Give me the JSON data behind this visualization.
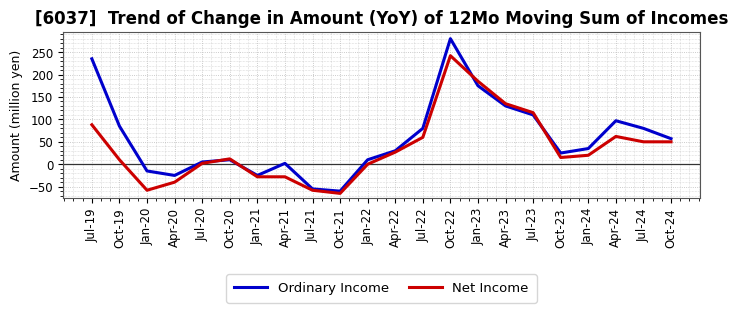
{
  "title": "[6037]  Trend of Change in Amount (YoY) of 12Mo Moving Sum of Incomes",
  "ylabel": "Amount (million yen)",
  "x_labels": [
    "Jul-19",
    "Oct-19",
    "Jan-20",
    "Apr-20",
    "Jul-20",
    "Oct-20",
    "Jan-21",
    "Apr-21",
    "Jul-21",
    "Oct-21",
    "Jan-22",
    "Apr-22",
    "Jul-22",
    "Oct-22",
    "Jan-23",
    "Apr-23",
    "Jul-23",
    "Oct-23",
    "Jan-24",
    "Apr-24",
    "Jul-24",
    "Oct-24"
  ],
  "ordinary_income": [
    235,
    85,
    -15,
    -25,
    5,
    10,
    -25,
    2,
    -55,
    -60,
    10,
    30,
    80,
    280,
    175,
    130,
    110,
    25,
    35,
    97,
    80,
    57
  ],
  "net_income": [
    88,
    10,
    -58,
    -40,
    2,
    12,
    -28,
    -28,
    -58,
    -65,
    0,
    27,
    60,
    242,
    185,
    135,
    115,
    15,
    20,
    62,
    50,
    50
  ],
  "ordinary_color": "#0000cc",
  "net_color": "#cc0000",
  "ylim": [
    -75,
    295
  ],
  "yticks": [
    -50,
    0,
    50,
    100,
    150,
    200,
    250
  ],
  "background_color": "#ffffff",
  "plot_bg_color": "#ffffff",
  "grid_color": "#bbbbbb",
  "legend_ordinary": "Ordinary Income",
  "legend_net": "Net Income",
  "title_fontsize": 12,
  "axis_fontsize": 9,
  "tick_fontsize": 8.5
}
